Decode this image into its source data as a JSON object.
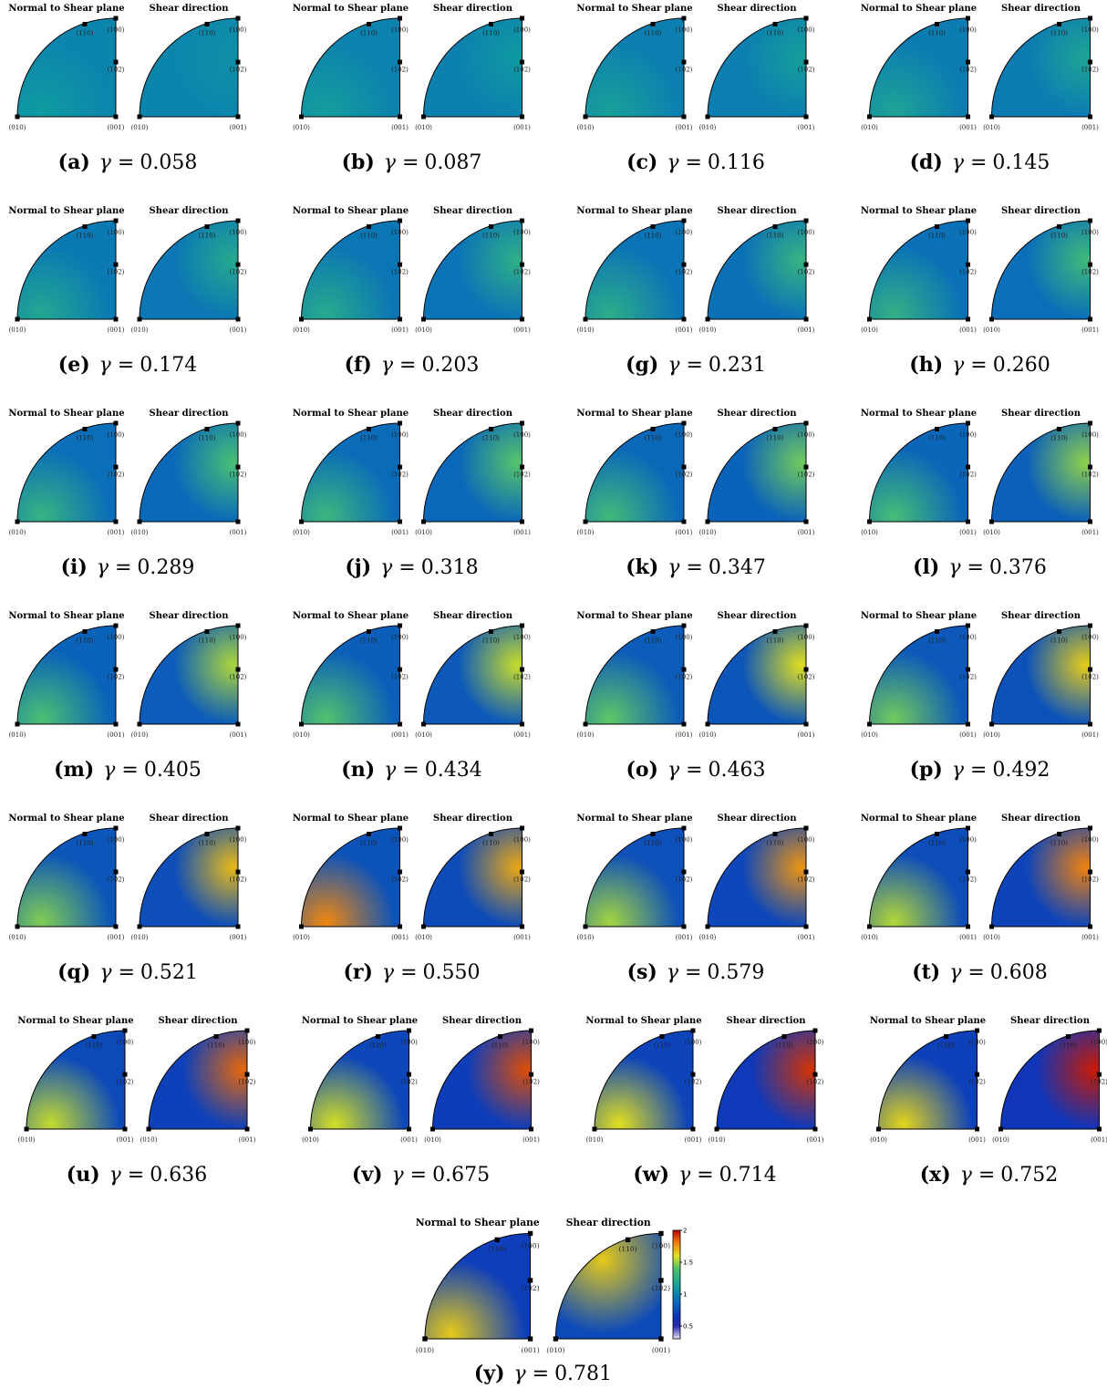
{
  "titles": {
    "left": "Normal to Shear plane",
    "right": "Shear direction"
  },
  "pole_labels": {
    "p110": "(110)",
    "p100": "(100)",
    "p102": "(102)",
    "p010": "(010)",
    "p001": "(001)"
  },
  "gamma_prefix": "γ =",
  "panels": [
    {
      "label": "(a)",
      "gamma": "0.058"
    },
    {
      "label": "(b)",
      "gamma": "0.087"
    },
    {
      "label": "(c)",
      "gamma": "0.116"
    },
    {
      "label": "(d)",
      "gamma": "0.145"
    },
    {
      "label": "(e)",
      "gamma": "0.174"
    },
    {
      "label": "(f)",
      "gamma": "0.203"
    },
    {
      "label": "(g)",
      "gamma": "0.231"
    },
    {
      "label": "(h)",
      "gamma": "0.260"
    },
    {
      "label": "(i)",
      "gamma": "0.289"
    },
    {
      "label": "(j)",
      "gamma": "0.318"
    },
    {
      "label": "(k)",
      "gamma": "0.347"
    },
    {
      "label": "(l)",
      "gamma": "0.376"
    },
    {
      "label": "(m)",
      "gamma": "0.405"
    },
    {
      "label": "(n)",
      "gamma": "0.434"
    },
    {
      "label": "(o)",
      "gamma": "0.463"
    },
    {
      "label": "(p)",
      "gamma": "0.492"
    },
    {
      "label": "(q)",
      "gamma": "0.521"
    },
    {
      "label": "(r)",
      "gamma": "0.550"
    },
    {
      "label": "(s)",
      "gamma": "0.579"
    },
    {
      "label": "(t)",
      "gamma": "0.608"
    },
    {
      "label": "(u)",
      "gamma": "0.636"
    },
    {
      "label": "(v)",
      "gamma": "0.675"
    },
    {
      "label": "(w)",
      "gamma": "0.714"
    },
    {
      "label": "(x)",
      "gamma": "0.752"
    },
    {
      "label": "(y)",
      "gamma": "0.781"
    }
  ],
  "colorbar": {
    "lim": [
      0.3,
      2
    ],
    "ticks": [
      0.5,
      1,
      1.5,
      2
    ]
  }
}
